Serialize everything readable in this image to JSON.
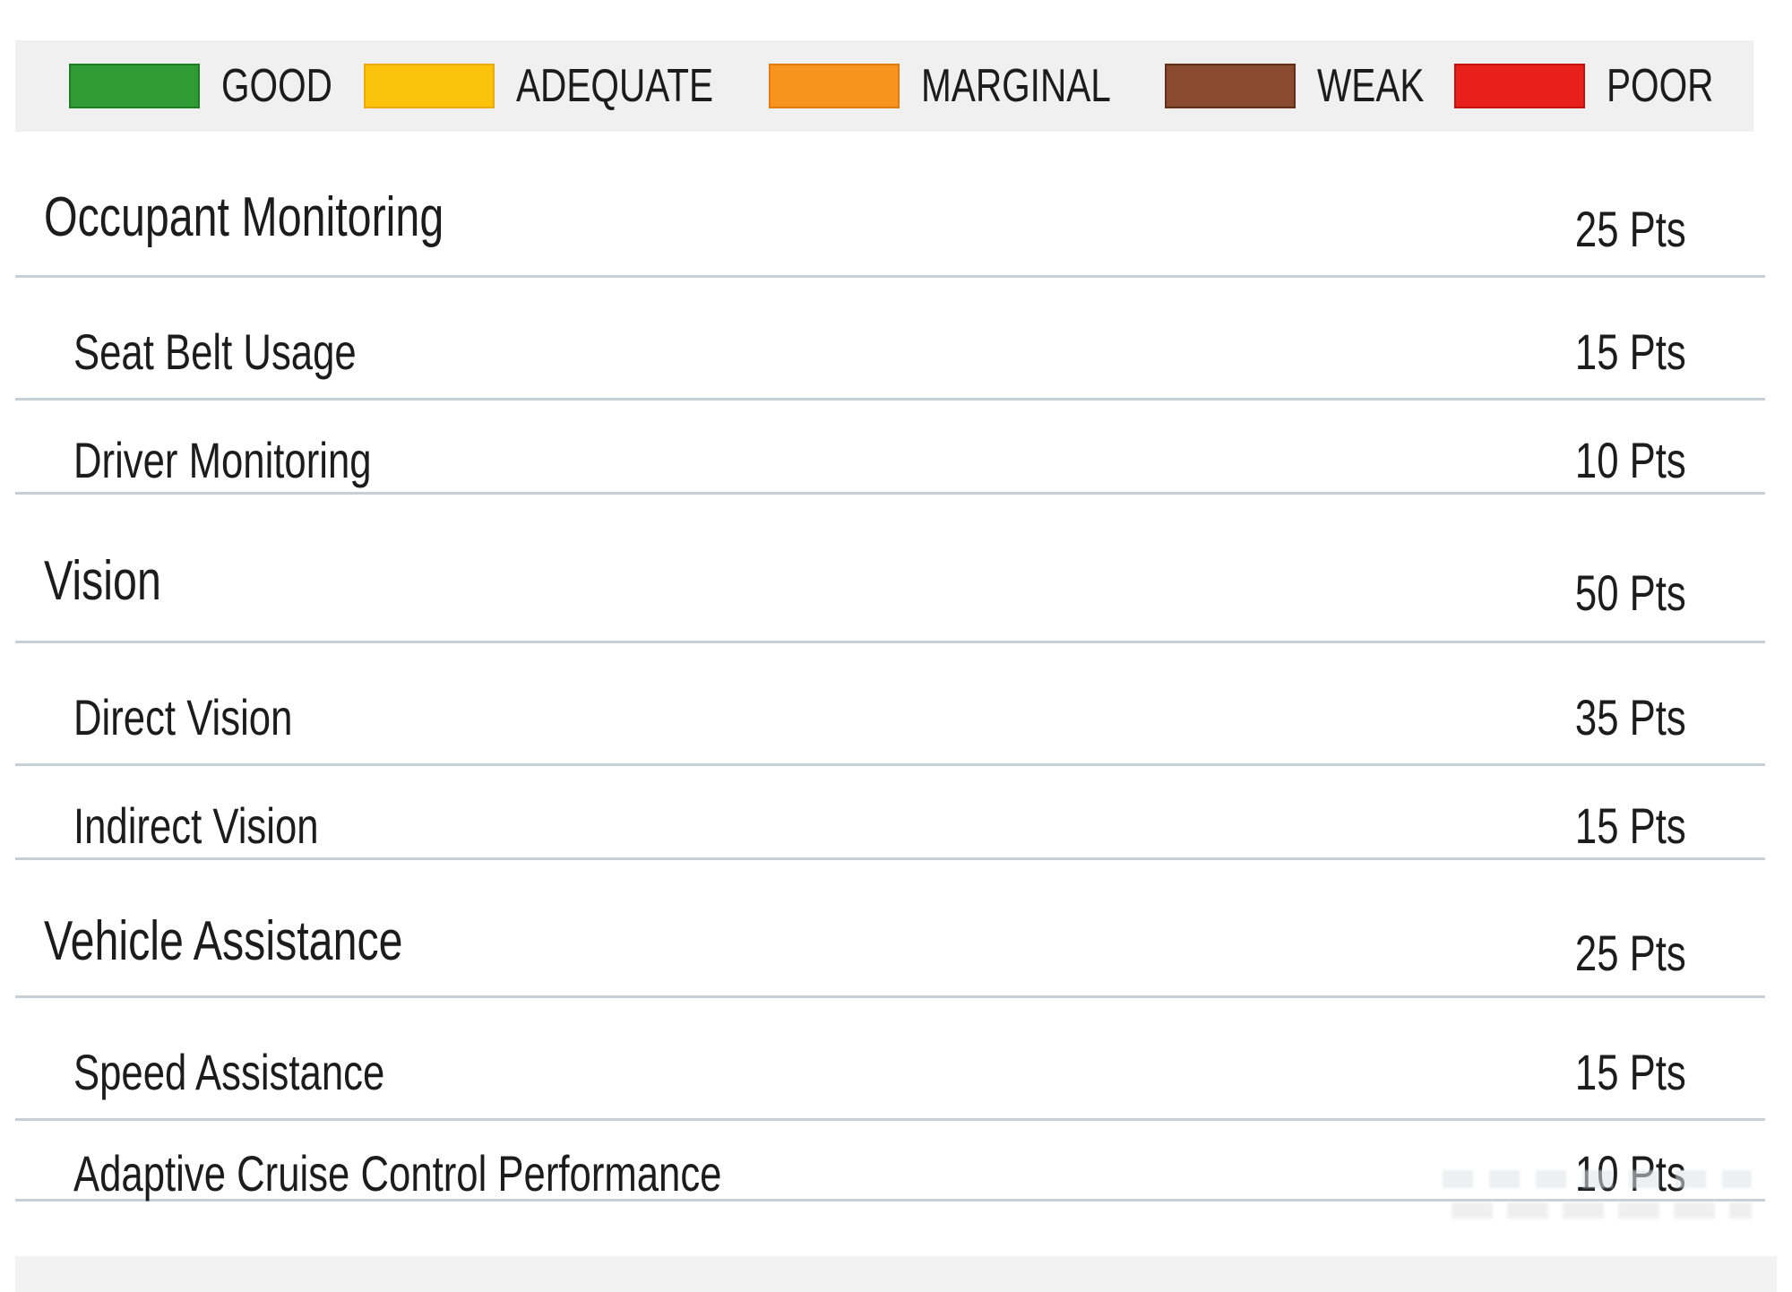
{
  "legend": {
    "items": [
      {
        "label": "GOOD",
        "color": "#2e9b33",
        "border": "#1e7d24"
      },
      {
        "label": "ADEQUATE",
        "color": "#fcc30d",
        "border": "#edaa0c"
      },
      {
        "label": "MARGINAL",
        "color": "#f7941e",
        "border": "#e07c12"
      },
      {
        "label": "WEAK",
        "color": "#8a4a2f",
        "border": "#5f3118"
      },
      {
        "label": "POOR",
        "color": "#e8201c",
        "border": "#c4120f"
      }
    ]
  },
  "table": {
    "rows": [
      {
        "label": "Occupant Monitoring",
        "points": "25 Pts",
        "type": "category"
      },
      {
        "label": "Seat Belt Usage",
        "points": "15 Pts",
        "type": "sub"
      },
      {
        "label": "Driver Monitoring",
        "points": "10 Pts",
        "type": "sub"
      },
      {
        "label": "Vision",
        "points": "50 Pts",
        "type": "category"
      },
      {
        "label": "Direct Vision",
        "points": "35 Pts",
        "type": "sub"
      },
      {
        "label": "Indirect Vision",
        "points": "15 Pts",
        "type": "sub"
      },
      {
        "label": "Vehicle Assistance",
        "points": "25 Pts",
        "type": "category"
      },
      {
        "label": "Speed Assistance",
        "points": "15 Pts",
        "type": "sub"
      },
      {
        "label": "Adaptive Cruise Control Performance",
        "points": "10 Pts",
        "type": "sub"
      }
    ]
  }
}
